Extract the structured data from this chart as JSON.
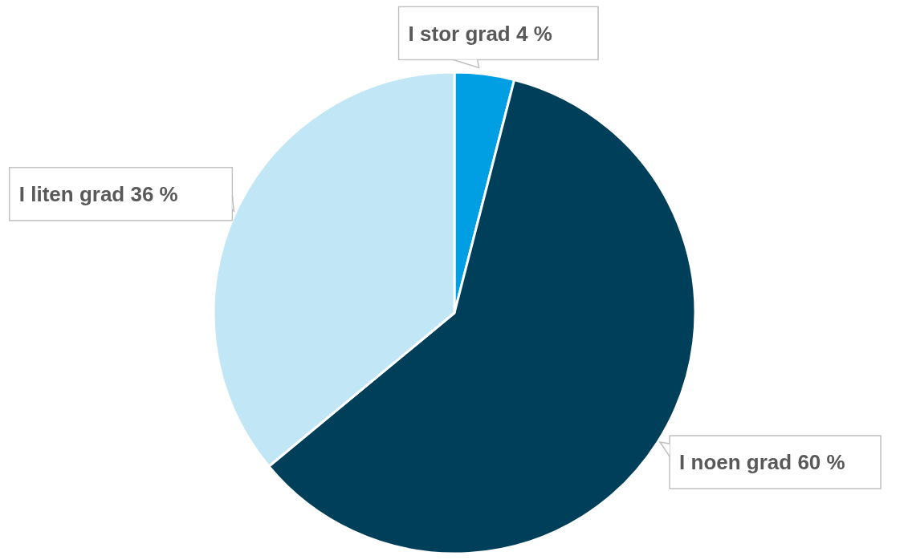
{
  "chart_data": {
    "type": "pie",
    "categories": [
      "I stor grad",
      "I noen grad",
      "I liten grad"
    ],
    "values": [
      4,
      60,
      36
    ],
    "value_labels": [
      "4 %",
      "60 %",
      "36 %"
    ],
    "colors": [
      "#009fe3",
      "#003f5a",
      "#c1e6f6"
    ]
  }
}
